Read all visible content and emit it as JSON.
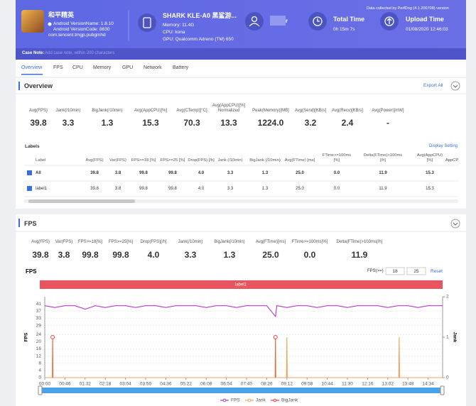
{
  "header": {
    "data_source": "Data collected by PerfDog (4.1.200708) version",
    "app": {
      "name": "和平精英",
      "version_name": "Android VersionName: 1.8.10",
      "version_code": "Android VersionCode: 8630",
      "package": "com.tencent.tmgp.pubgmhd"
    },
    "device": {
      "name": "SHARK KLE-A0 黑鲨游...",
      "memory": "Memory: 11.4G",
      "cpu": "CPU: kona",
      "gpu": "GPU: Qualcomm Adreno (TM) 650"
    },
    "user": {
      "name": "r"
    },
    "total_time": {
      "label": "Total Time",
      "value": "0h 15m 7s"
    },
    "upload_time": {
      "label": "Upload Time",
      "value": "01/08/2020 12:46:03"
    },
    "case_note": {
      "label": "Case Note:",
      "placeholder": "Add case note, within 200 characters"
    }
  },
  "tabs": [
    "Overview",
    "FPS",
    "CPU",
    "Memory",
    "GPU",
    "Network",
    "Battery"
  ],
  "overview": {
    "title": "Overview",
    "export": "Export All",
    "metrics": [
      {
        "label": "Avg(FPS)",
        "value": "39.8"
      },
      {
        "label": "Jank(/10min)",
        "value": "3.3"
      },
      {
        "label": "BigJank(/10min)",
        "value": "1.3"
      },
      {
        "label": "Avg(AppCPU)[%]",
        "value": "15.3"
      },
      {
        "label": "Avg(CTemp)[°C]",
        "value": "70.3"
      },
      {
        "label": "Avg(AppCPU)[%] Normalized",
        "value": "13.3"
      },
      {
        "label": "Peak(Memory)[MB]",
        "value": "1224.0"
      },
      {
        "label": "Avg(Send)[KB/s]",
        "value": "3.2"
      },
      {
        "label": "Avg(Recv)[KB/s]",
        "value": "2.4"
      },
      {
        "label": "Avg(Power)[mW]",
        "value": "-"
      }
    ],
    "labels_table": {
      "title": "Labels",
      "display_setting": "Display Setting",
      "columns": [
        "Label",
        "Avg(FPS)",
        "Var(FPS)",
        "FPS>=18 [%]",
        "FPS>=25 [%]",
        "Drop(FPS) [/h]",
        "Jank (/10min)",
        "BigJank (/10min)",
        "Avg(FTime) [ms]",
        "FTime>=100ms [%]",
        "Delta(FTime)>100ms [/h]",
        "Avg(AppCPU) [%]",
        "AppCP"
      ],
      "rows": [
        [
          "All",
          "39.8",
          "3.8",
          "99.8",
          "99.8",
          "4.0",
          "3.3",
          "1.3",
          "25.0",
          "0.0",
          "11.9",
          "15.3"
        ],
        [
          "label1",
          "39.8",
          "3.8",
          "99.8",
          "99.8",
          "4.0",
          "3.3",
          "1.3",
          "25.0",
          "0.0",
          "11.9",
          "15.3"
        ]
      ]
    }
  },
  "fps_panel": {
    "title": "FPS",
    "metrics": [
      {
        "label": "Avg(FPS)",
        "value": "39.8"
      },
      {
        "label": "Var(FPS)",
        "value": "3.8"
      },
      {
        "label": "FPS>=18[%]",
        "value": "99.8"
      },
      {
        "label": "FPS>=25[%]",
        "value": "99.8"
      },
      {
        "label": "Drop(FPS)[/h]",
        "value": "4.0"
      },
      {
        "label": "Jank(/10min)",
        "value": "3.3"
      },
      {
        "label": "BigJank(/10min)",
        "value": "1.3"
      },
      {
        "label": "Avg(FTime)[ms]",
        "value": "25.0"
      },
      {
        "label": "FTime>=100ms[%]",
        "value": "0.0"
      },
      {
        "label": "Delta(FTime)>100ms[/h]",
        "value": "11.9"
      }
    ],
    "threshold_label": "FPS(>=)",
    "thresholds": [
      "18",
      "25"
    ],
    "reset": "Reset"
  },
  "chart_data": {
    "type": "line",
    "title": "FPS",
    "annotation": "label1",
    "ylabel": "FPS",
    "y2label": "Jank",
    "xlim": [
      0,
      907
    ],
    "xticks": [
      {
        "value": 0,
        "label": "00:00"
      },
      {
        "value": 46,
        "label": "00:46"
      },
      {
        "value": 92,
        "label": "01:32"
      },
      {
        "value": 138,
        "label": "02:18"
      },
      {
        "value": 184,
        "label": "03:04"
      },
      {
        "value": 230,
        "label": "03:50"
      },
      {
        "value": 276,
        "label": "04:36"
      },
      {
        "value": 322,
        "label": "05:22"
      },
      {
        "value": 368,
        "label": "06:08"
      },
      {
        "value": 414,
        "label": "06:54"
      },
      {
        "value": 460,
        "label": "07:40"
      },
      {
        "value": 506,
        "label": "08:26"
      },
      {
        "value": 552,
        "label": "09:12"
      },
      {
        "value": 598,
        "label": "09:58"
      },
      {
        "value": 644,
        "label": "10:44"
      },
      {
        "value": 690,
        "label": "11:30"
      },
      {
        "value": 736,
        "label": "12:16"
      },
      {
        "value": 782,
        "label": "13:02"
      },
      {
        "value": 828,
        "label": "13:48"
      },
      {
        "value": 874,
        "label": "14:34"
      }
    ],
    "ylim": [
      0,
      45
    ],
    "yticks": [
      0,
      4,
      8,
      12,
      16,
      20,
      24,
      29,
      33,
      37,
      41
    ],
    "y2lim": [
      0,
      2
    ],
    "y2ticks": [
      0,
      1,
      2
    ],
    "grid": true,
    "series": [
      {
        "name": "FPS",
        "color": "#b23cc4",
        "x": [
          0,
          23,
          46,
          69,
          92,
          115,
          138,
          161,
          184,
          207,
          230,
          253,
          276,
          299,
          322,
          345,
          368,
          391,
          414,
          437,
          460,
          483,
          506,
          526,
          529,
          552,
          575,
          598,
          621,
          644,
          667,
          690,
          713,
          736,
          759,
          782,
          805,
          828,
          851,
          874,
          907
        ],
        "values": [
          40,
          39,
          40,
          40,
          38,
          40,
          39,
          40,
          40,
          39,
          40,
          40,
          39,
          40,
          40,
          40,
          39,
          40,
          40,
          39,
          40,
          40,
          40,
          34,
          40,
          39,
          40,
          40,
          39,
          40,
          40,
          39,
          40,
          40,
          40,
          39,
          40,
          40,
          39,
          40,
          40
        ]
      },
      {
        "name": "Jank",
        "color": "#f2a35e",
        "axis": "y2",
        "x": [
          0,
          17,
          18,
          19,
          525,
          526,
          527,
          551,
          552,
          553,
          807,
          808,
          809,
          907
        ],
        "values": [
          0,
          0,
          1,
          0,
          0,
          1,
          0,
          0,
          1,
          0,
          0,
          1,
          0,
          0
        ]
      },
      {
        "name": "BigJank",
        "color": "#e8423a",
        "axis": "y2",
        "mode": "markers",
        "x": [
          18,
          526
        ],
        "values": [
          1,
          1
        ]
      }
    ]
  }
}
